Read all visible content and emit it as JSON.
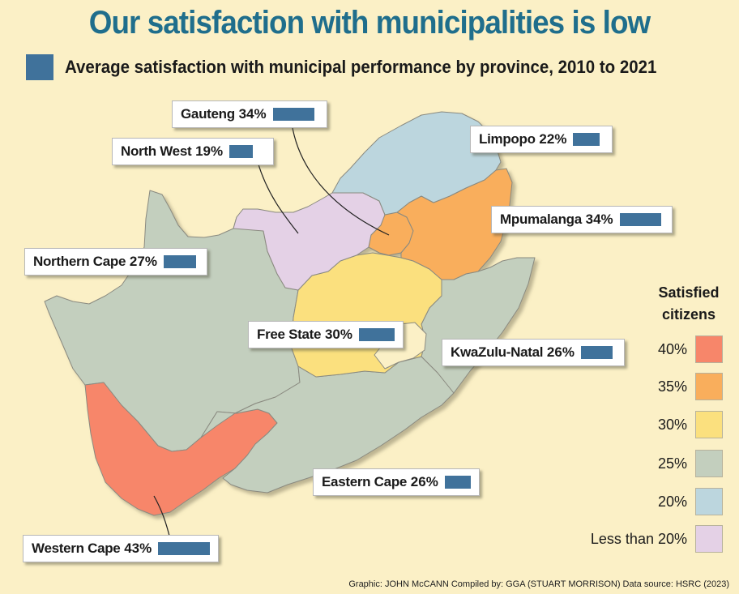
{
  "title": "Our satisfaction with municipalities is low",
  "subtitle": "Average satisfaction with municipal performance by province, 2010 to 2021",
  "provinces": [
    {
      "name": "Gauteng",
      "value": "34%",
      "pct": 34,
      "fill": "#f9ae5c"
    },
    {
      "name": "North West",
      "value": "19%",
      "pct": 19,
      "fill": "#e4d1e6"
    },
    {
      "name": "Limpopo",
      "value": "22%",
      "pct": 22,
      "fill": "#bcd6de"
    },
    {
      "name": "Mpumalanga",
      "value": "34%",
      "pct": 34,
      "fill": "#f9ae5c"
    },
    {
      "name": "Northern Cape",
      "value": "27%",
      "pct": 27,
      "fill": "#c3cfbe"
    },
    {
      "name": "Free State",
      "value": "30%",
      "pct": 30,
      "fill": "#fbe07e"
    },
    {
      "name": "KwaZulu-Natal",
      "value": "26%",
      "pct": 26,
      "fill": "#c3cfbe"
    },
    {
      "name": "Eastern Cape",
      "value": "26%",
      "pct": 26,
      "fill": "#c3cfbe"
    },
    {
      "name": "Western Cape",
      "value": "43%",
      "pct": 43,
      "fill": "#f7866a"
    }
  ],
  "legend": {
    "title": "Satisfied citizens",
    "items": [
      {
        "label": "40%",
        "color": "#f7866a"
      },
      {
        "label": "35%",
        "color": "#f9ae5c"
      },
      {
        "label": "30%",
        "color": "#fbe07e"
      },
      {
        "label": "25%",
        "color": "#c3cfbe"
      },
      {
        "label": "20%",
        "color": "#bcd6de"
      },
      {
        "label": "Less than 20%",
        "color": "#e4d1e6"
      }
    ]
  },
  "colors": {
    "bar": "#40729b",
    "title": "#1f6e8c",
    "background": "#fbf0c6"
  },
  "credits": "Graphic: JOHN McCANN  Compiled by: GGA (STUART MORRISON)  Data source: HSRC (2023)"
}
